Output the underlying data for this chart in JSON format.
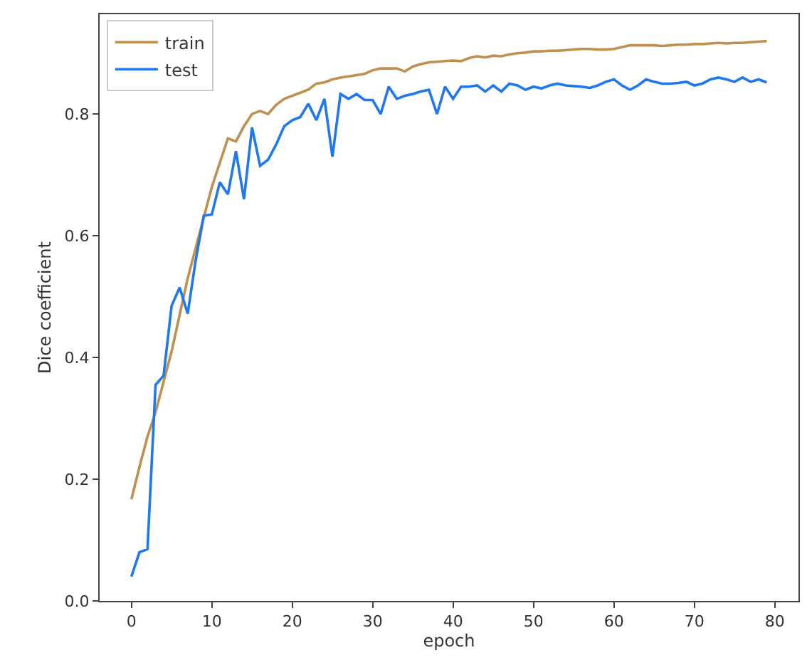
{
  "chart_data": {
    "type": "line",
    "xlabel": "epoch",
    "ylabel": "Dice coefficient",
    "x": [
      0,
      1,
      2,
      3,
      4,
      5,
      6,
      7,
      8,
      9,
      10,
      11,
      12,
      13,
      14,
      15,
      16,
      17,
      18,
      19,
      20,
      21,
      22,
      23,
      24,
      25,
      26,
      27,
      28,
      29,
      30,
      31,
      32,
      33,
      34,
      35,
      36,
      37,
      38,
      39,
      40,
      41,
      42,
      43,
      44,
      45,
      46,
      47,
      48,
      49,
      50,
      51,
      52,
      53,
      54,
      55,
      56,
      57,
      58,
      59,
      60,
      61,
      62,
      63,
      64,
      65,
      66,
      67,
      68,
      69,
      70,
      71,
      72,
      73,
      74,
      75,
      76,
      77,
      78,
      79
    ],
    "series": [
      {
        "name": "train",
        "color": "#c0904f",
        "values": [
          0.167,
          0.22,
          0.27,
          0.31,
          0.36,
          0.41,
          0.47,
          0.53,
          0.58,
          0.63,
          0.68,
          0.72,
          0.76,
          0.755,
          0.78,
          0.8,
          0.805,
          0.8,
          0.815,
          0.825,
          0.83,
          0.835,
          0.84,
          0.85,
          0.852,
          0.857,
          0.86,
          0.862,
          0.864,
          0.866,
          0.872,
          0.875,
          0.875,
          0.875,
          0.87,
          0.878,
          0.882,
          0.885,
          0.886,
          0.887,
          0.888,
          0.887,
          0.892,
          0.895,
          0.893,
          0.896,
          0.895,
          0.898,
          0.9,
          0.901,
          0.903,
          0.903,
          0.904,
          0.904,
          0.905,
          0.906,
          0.907,
          0.907,
          0.906,
          0.906,
          0.907,
          0.91,
          0.913,
          0.913,
          0.913,
          0.913,
          0.912,
          0.913,
          0.914,
          0.914,
          0.915,
          0.915,
          0.916,
          0.917,
          0.916,
          0.917,
          0.917,
          0.918,
          0.919,
          0.92
        ]
      },
      {
        "name": "test",
        "color": "#1f78f0",
        "values": [
          0.04,
          0.08,
          0.085,
          0.355,
          0.37,
          0.485,
          0.515,
          0.472,
          0.56,
          0.633,
          0.635,
          0.688,
          0.668,
          0.739,
          0.66,
          0.778,
          0.715,
          0.725,
          0.75,
          0.78,
          0.79,
          0.795,
          0.817,
          0.79,
          0.825,
          0.73,
          0.833,
          0.825,
          0.833,
          0.823,
          0.823,
          0.8,
          0.845,
          0.825,
          0.83,
          0.833,
          0.837,
          0.84,
          0.8,
          0.845,
          0.825,
          0.845,
          0.845,
          0.847,
          0.837,
          0.847,
          0.837,
          0.85,
          0.847,
          0.84,
          0.845,
          0.842,
          0.847,
          0.85,
          0.847,
          0.846,
          0.845,
          0.843,
          0.847,
          0.853,
          0.857,
          0.847,
          0.84,
          0.847,
          0.857,
          0.853,
          0.85,
          0.85,
          0.851,
          0.853,
          0.847,
          0.85,
          0.857,
          0.86,
          0.857,
          0.853,
          0.86,
          0.853,
          0.857,
          0.852
        ]
      }
    ],
    "xlim": [
      -3.95,
      82.95
    ],
    "ylim": [
      0,
      0.964
    ],
    "xticks": [
      0,
      10,
      20,
      30,
      40,
      50,
      60,
      70,
      80
    ],
    "yticks": [
      {
        "value": 0,
        "label": "0.0"
      },
      {
        "value": 0.2,
        "label": "0.2"
      },
      {
        "value": 0.4,
        "label": "0.4"
      },
      {
        "value": 0.6,
        "label": "0.6"
      },
      {
        "value": 0.8,
        "label": "0.8"
      }
    ],
    "legend": "top left",
    "marker": "none",
    "line_style": "solid"
  }
}
